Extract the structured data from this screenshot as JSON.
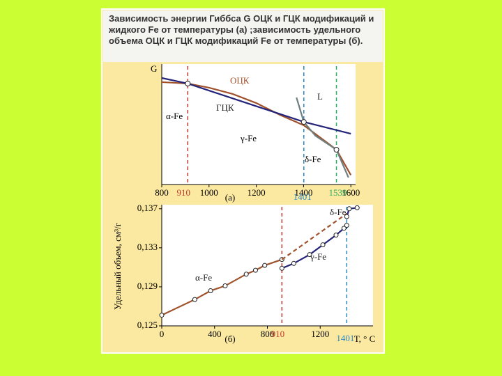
{
  "caption": "Зависимость энергии Гиббса G ОЦК и ГЦК модификаций и жидкого Fe от температуры (а) ;зависимость удельного объема ОЦК и ГЦК модификаций Fe от температуры (б).",
  "chart_data": [
    {
      "type": "line",
      "ylabel": "G",
      "panel_label": "(а)",
      "xlim": [
        800,
        1620
      ],
      "ylim": [
        0,
        100
      ],
      "xticks": [
        800,
        1000,
        1200,
        1400,
        1600
      ],
      "series": [
        {
          "name": "ОЦК",
          "color": "#a0522d",
          "x": [
            800,
            910,
            1000,
            1100,
            1200,
            1300,
            1401,
            1500,
            1539,
            1600
          ],
          "values": [
            86.5,
            85.3,
            81.8,
            76.5,
            68.8,
            58.8,
            50,
            35.3,
            29.4,
            8
          ]
        },
        {
          "name": "ГЦК",
          "color": "#23237a",
          "x": [
            800,
            910,
            1401,
            1600
          ],
          "values": [
            90,
            85.3,
            52.9,
            42.9
          ]
        },
        {
          "name": "L",
          "color": "#6f7f7f",
          "x": [
            1370,
            1401,
            1450,
            1539,
            1590
          ],
          "values": [
            73.5,
            52.9,
            41.2,
            29.4,
            5.9
          ]
        }
      ],
      "points": {
        "x": [
          910,
          1401,
          1539
        ],
        "values": [
          85.3,
          52.9,
          29.4
        ]
      },
      "vlines": [
        {
          "x": 910,
          "label": "910",
          "color": "#c0392b"
        },
        {
          "x": 1401,
          "label": "1401",
          "color": "#2e86c1"
        },
        {
          "x": 1539,
          "label": "1539",
          "color": "#27ae60"
        }
      ],
      "annotations": [
        "α-Fe",
        "γ-Fe",
        "δ-Fe"
      ]
    },
    {
      "type": "line",
      "ylabel": "Удельный объем, см³/г",
      "xlabel": "T, ° C",
      "panel_label": "(б)",
      "xlim": [
        0,
        1600
      ],
      "ylim": [
        0.125,
        0.1372
      ],
      "xticks": [
        0,
        400,
        800,
        1200
      ],
      "yticks": [
        {
          "value": 0.125,
          "label": "0,125"
        },
        {
          "value": 0.129,
          "label": "0,129"
        },
        {
          "value": 0.133,
          "label": "0,133"
        },
        {
          "value": 0.137,
          "label": "0,137"
        }
      ],
      "series": [
        {
          "name": "α-Fe",
          "color": "#a0522d",
          "markers": true,
          "x": [
            0,
            250,
            370,
            480,
            640,
            710,
            780,
            910
          ],
          "values": [
            0.1261,
            0.1277,
            0.1286,
            0.1291,
            0.1303,
            0.1307,
            0.1312,
            0.1318
          ]
        },
        {
          "color": "#a0522d",
          "dashed": true,
          "x": [
            910,
            1401
          ],
          "values": [
            0.1318,
            0.1365
          ]
        },
        {
          "name": "γ-Fe",
          "color": "#23237a",
          "markers": true,
          "x": [
            910,
            1000,
            1120,
            1220,
            1320,
            1380,
            1401
          ],
          "values": [
            0.1309,
            0.1314,
            0.1323,
            0.1333,
            0.1343,
            0.135,
            0.1353
          ]
        },
        {
          "name": "δ-Fe",
          "color": "#23237a",
          "markers": true,
          "x": [
            1401,
            1420,
            1480
          ],
          "values": [
            0.1362,
            0.137,
            0.1371
          ]
        }
      ],
      "vlines": [
        {
          "x": 910,
          "label": "910",
          "color": "#c0392b"
        },
        {
          "x": 1401,
          "label": "1401",
          "color": "#2e86c1"
        }
      ]
    }
  ]
}
